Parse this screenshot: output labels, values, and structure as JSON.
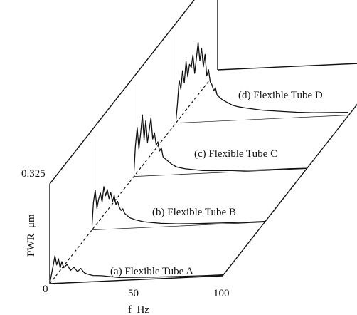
{
  "chart_data": {
    "type": "line",
    "layout": "3d-waterfall",
    "x_axis": {
      "label": "f  Hz",
      "range": [
        0,
        100
      ],
      "ticks": [
        "0",
        "50",
        "100"
      ]
    },
    "y_axis": {
      "label": "PWR  μm",
      "range": [
        0,
        0.325
      ],
      "ticks": [
        "0",
        "0.325"
      ]
    },
    "grid": false,
    "legend": "none",
    "series": [
      {
        "name": "(a) Flexible Tube A",
        "x": [
          0,
          1,
          2,
          3,
          4,
          5,
          6,
          7,
          8,
          10,
          12,
          14,
          16,
          18,
          20,
          22,
          25,
          30,
          35,
          40,
          50,
          60,
          70,
          80,
          90,
          100
        ],
        "y": [
          0.0,
          0.03,
          0.06,
          0.09,
          0.06,
          0.08,
          0.05,
          0.07,
          0.05,
          0.06,
          0.04,
          0.05,
          0.035,
          0.045,
          0.03,
          0.025,
          0.02,
          0.018,
          0.014,
          0.01,
          0.008,
          0.006,
          0.005,
          0.004,
          0.003,
          0.003
        ]
      },
      {
        "name": "(b) Flexible Tube B",
        "x": [
          0,
          1,
          2,
          3,
          4,
          5,
          6,
          7,
          8,
          9,
          10,
          11,
          12,
          13,
          14,
          15,
          16,
          17,
          18,
          19,
          20,
          22,
          25,
          30,
          35,
          40,
          50,
          60,
          70,
          80,
          90,
          100
        ],
        "y": [
          0.0,
          0.09,
          0.13,
          0.07,
          0.1,
          0.12,
          0.09,
          0.14,
          0.11,
          0.13,
          0.1,
          0.12,
          0.09,
          0.11,
          0.08,
          0.09,
          0.07,
          0.06,
          0.065,
          0.05,
          0.045,
          0.035,
          0.028,
          0.02,
          0.016,
          0.012,
          0.008,
          0.006,
          0.005,
          0.004,
          0.003,
          0.003
        ]
      },
      {
        "name": "(c) Flexible Tube C",
        "x": [
          0,
          1,
          2,
          3,
          4,
          5,
          6,
          7,
          8,
          9,
          10,
          11,
          12,
          13,
          14,
          15,
          16,
          17,
          18,
          19,
          20,
          22,
          25,
          30,
          35,
          40,
          50,
          60,
          70,
          80,
          90,
          100
        ],
        "y": [
          0.0,
          0.1,
          0.16,
          0.09,
          0.14,
          0.2,
          0.12,
          0.18,
          0.11,
          0.15,
          0.19,
          0.12,
          0.14,
          0.1,
          0.11,
          0.08,
          0.09,
          0.06,
          0.055,
          0.05,
          0.045,
          0.035,
          0.025,
          0.018,
          0.014,
          0.01,
          0.007,
          0.005,
          0.004,
          0.003,
          0.003,
          0.002
        ]
      },
      {
        "name": "(d) Flexible Tube D",
        "x": [
          0,
          1,
          2,
          3,
          4,
          5,
          6,
          7,
          8,
          9,
          10,
          11,
          12,
          13,
          14,
          15,
          16,
          17,
          18,
          19,
          20,
          21,
          22,
          23,
          24,
          25,
          27,
          30,
          33,
          36,
          40,
          45,
          50,
          60,
          70,
          80,
          90,
          100
        ],
        "y": [
          0.0,
          0.06,
          0.14,
          0.11,
          0.17,
          0.13,
          0.2,
          0.15,
          0.19,
          0.18,
          0.22,
          0.16,
          0.21,
          0.26,
          0.2,
          0.24,
          0.18,
          0.22,
          0.15,
          0.17,
          0.13,
          0.12,
          0.1,
          0.11,
          0.085,
          0.08,
          0.07,
          0.06,
          0.05,
          0.045,
          0.04,
          0.035,
          0.03,
          0.024,
          0.018,
          0.014,
          0.012,
          0.01
        ]
      }
    ]
  }
}
